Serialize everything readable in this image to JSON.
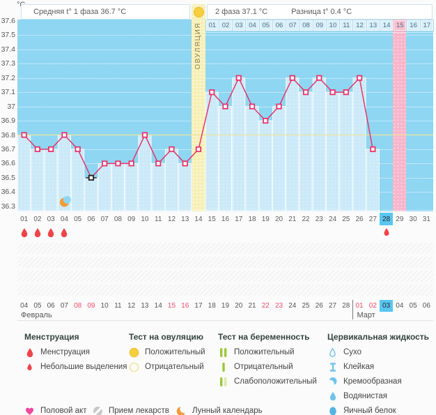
{
  "header": {
    "phase1_label": "Средняя t° 1 фаза 36.7 °C",
    "phase2_label": "2 фаза 37.1 °C",
    "diff_label": "Разница t° 0.4 °C"
  },
  "y_axis": {
    "unit": "°C",
    "ticks": [
      {
        "v": 37.6,
        "label": "37.6"
      },
      {
        "v": 37.5,
        "label": "37.5"
      },
      {
        "v": 37.4,
        "label": "37.4"
      },
      {
        "v": 37.3,
        "label": "37.3"
      },
      {
        "v": 37.2,
        "label": "37.2"
      },
      {
        "v": 37.1,
        "label": "37.1"
      },
      {
        "v": 37.0,
        "label": "37"
      },
      {
        "v": 36.9,
        "label": "36.9"
      },
      {
        "v": 36.8,
        "label": "36.8"
      },
      {
        "v": 36.7,
        "label": "36.7"
      },
      {
        "v": 36.6,
        "label": "36.6"
      },
      {
        "v": 36.5,
        "label": "36.5"
      },
      {
        "v": 36.4,
        "label": "36.4"
      },
      {
        "v": 36.3,
        "label": "36.3"
      }
    ]
  },
  "chart_data": {
    "type": "line",
    "ylim": [
      36.3,
      37.6
    ],
    "x_days": [
      "01",
      "02",
      "03",
      "04",
      "05",
      "06",
      "07",
      "08",
      "09",
      "10",
      "11",
      "12",
      "13",
      "14",
      "15",
      "16",
      "17",
      "18",
      "19",
      "20",
      "21",
      "22",
      "23",
      "24",
      "25",
      "26",
      "27",
      "28",
      "29",
      "30",
      "31"
    ],
    "points": [
      {
        "day": 1,
        "value": 36.8
      },
      {
        "day": 2,
        "value": 36.7
      },
      {
        "day": 3,
        "value": 36.7
      },
      {
        "day": 4,
        "value": 36.8
      },
      {
        "day": 5,
        "value": 36.7
      },
      {
        "day": 6,
        "value": 36.5
      },
      {
        "day": 7,
        "value": 36.6
      },
      {
        "day": 8,
        "value": 36.6
      },
      {
        "day": 9,
        "value": 36.6
      },
      {
        "day": 10,
        "value": 36.8
      },
      {
        "day": 11,
        "value": 36.6
      },
      {
        "day": 12,
        "value": 36.7
      },
      {
        "day": 13,
        "value": 36.6
      },
      {
        "day": 14,
        "value": 36.7
      },
      {
        "day": 15,
        "value": 37.1
      },
      {
        "day": 16,
        "value": 37.0
      },
      {
        "day": 17,
        "value": 37.2
      },
      {
        "day": 18,
        "value": 37.0
      },
      {
        "day": 19,
        "value": 36.9
      },
      {
        "day": 20,
        "value": 37.0
      },
      {
        "day": 21,
        "value": 37.2
      },
      {
        "day": 22,
        "value": 37.1
      },
      {
        "day": 23,
        "value": 37.2
      },
      {
        "day": 24,
        "value": 37.1
      },
      {
        "day": 25,
        "value": 37.1
      },
      {
        "day": 26,
        "value": 37.2
      },
      {
        "day": 27,
        "value": 36.7
      }
    ],
    "coverline": 36.8,
    "excluded_point_day": 6,
    "ovulation": {
      "day": 14,
      "label": "ОВУЛЯЦИЯ"
    },
    "expected_period_day": 29,
    "selected_day": 28,
    "moon_day": 4,
    "menstruation_days": [
      1,
      2,
      3,
      4
    ],
    "spotting_days": [
      28
    ],
    "dpo_row": {
      "labels": [
        "01",
        "02",
        "03",
        "04",
        "05",
        "06",
        "07",
        "08",
        "09",
        "10",
        "11",
        "12",
        "13",
        "14",
        "15",
        "16",
        "17"
      ],
      "highlighted": "15"
    }
  },
  "calendar": {
    "dates": [
      "04",
      "05",
      "06",
      "07",
      "08",
      "09",
      "10",
      "11",
      "12",
      "13",
      "14",
      "15",
      "16",
      "17",
      "18",
      "19",
      "20",
      "21",
      "22",
      "23",
      "24",
      "25",
      "26",
      "27",
      "28",
      "01",
      "02",
      "03",
      "04",
      "05",
      "06"
    ],
    "weekend_indices": [
      4,
      5,
      11,
      12,
      18,
      19,
      25,
      26
    ],
    "today_index": 27,
    "march_start_index": 25,
    "month_labels": {
      "feb": "Февраль",
      "mar": "Март"
    }
  },
  "legend": {
    "menstruation": {
      "title": "Менструация",
      "items": [
        {
          "icon": "drop-large-icon",
          "label": "Менструация"
        },
        {
          "icon": "drop-small-icon",
          "label": "Небольшие выделения"
        }
      ]
    },
    "ovulation_test": {
      "title": "Тест на овуляцию",
      "items": [
        {
          "icon": "circle-filled-icon",
          "label": "Положительный"
        },
        {
          "icon": "circle-outline-icon",
          "label": "Отрицательный"
        }
      ]
    },
    "pregnancy_test": {
      "title": "Тест на беременность",
      "items": [
        {
          "icon": "two-bars-icon",
          "label": "Положительный"
        },
        {
          "icon": "one-bar-icon",
          "label": "Отрицательный"
        },
        {
          "icon": "bar-faint-bar-icon",
          "label": "Слабоположительный"
        }
      ]
    },
    "cervical_fluid": {
      "title": "Цервикальная жидкость",
      "items": [
        {
          "icon": "droplet-outline-icon",
          "label": "Сухо"
        },
        {
          "icon": "sticky-icon",
          "label": "Клейкая"
        },
        {
          "icon": "creamy-icon",
          "label": "Кремообразная"
        },
        {
          "icon": "watery-icon",
          "label": "Водянистая"
        },
        {
          "icon": "eggwhite-icon",
          "label": "Яичный белок"
        }
      ]
    },
    "extra": [
      {
        "icon": "heart-icon",
        "label": "Половой акт"
      },
      {
        "icon": "meds-icon",
        "label": "Прием лекарств"
      },
      {
        "icon": "moon-icon",
        "label": "Лунный календарь"
      }
    ]
  },
  "colors": {
    "chart_bg": "#8FD6F2",
    "fill": "#CBE9F8",
    "line": "#E5356B",
    "excluded": "#1F1F1F",
    "coverline": "#EDE39B",
    "ovulation_band": "#F6EFB6",
    "period_band": "#F8B5CA",
    "today": "#58C6F0",
    "drop_red": "#EF4448",
    "weekend_red": "#EE4A6B",
    "test_yellow": "#F6CF3F",
    "test_yellow_pale": "#F2E3A0",
    "green": "#9CC83C",
    "green_pale": "#D9E8AC",
    "cf_blue": "#6FC3EA",
    "cf_blue_dark": "#55B4E4",
    "heart_pink": "#F0489C",
    "meds_gray": "#C8C8C8",
    "moon_orange": "#F29B38"
  }
}
